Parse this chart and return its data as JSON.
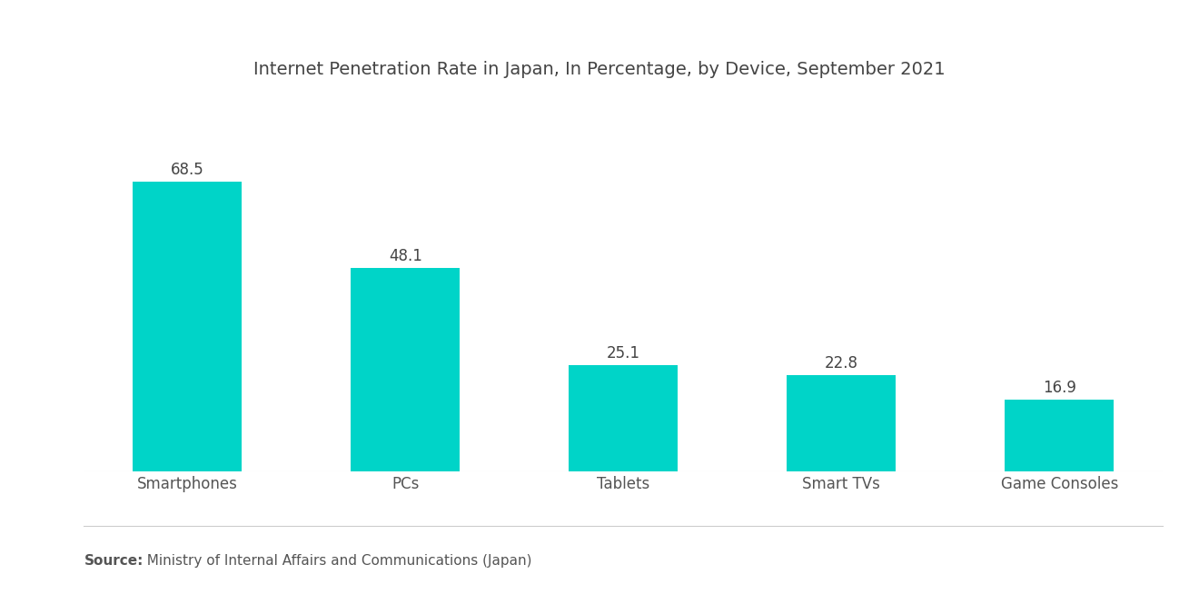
{
  "title": "Internet Penetration Rate in Japan, In Percentage, by Device, September 2021",
  "categories": [
    "Smartphones",
    "PCs",
    "Tablets",
    "Smart TVs",
    "Game Consoles"
  ],
  "values": [
    68.5,
    48.1,
    25.1,
    22.8,
    16.9
  ],
  "bar_color": "#00D4C8",
  "value_labels": [
    "68.5",
    "48.1",
    "25.1",
    "22.8",
    "16.9"
  ],
  "source_bold": "Source:",
  "source_rest": "  Ministry of Internal Affairs and Communications (Japan)",
  "ylim": [
    0,
    80
  ],
  "background_color": "#ffffff",
  "title_fontsize": 14,
  "label_fontsize": 12,
  "value_fontsize": 12,
  "bar_width": 0.5
}
